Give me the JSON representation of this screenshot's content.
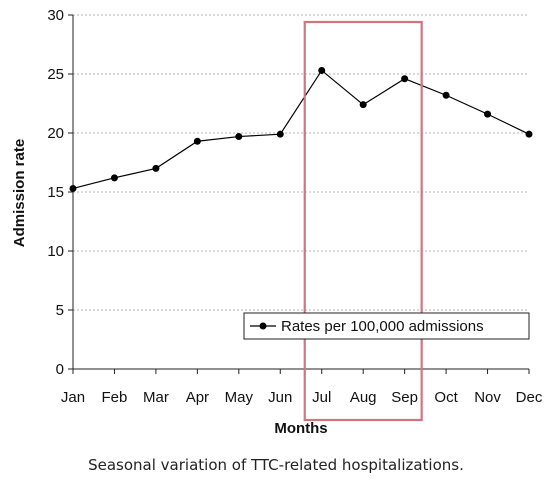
{
  "chart_data": {
    "type": "line",
    "categories": [
      "Jan",
      "Feb",
      "Mar",
      "Apr",
      "May",
      "Jun",
      "Jul",
      "Aug",
      "Sep",
      "Oct",
      "Nov",
      "Dec"
    ],
    "series": [
      {
        "name": "Rates per 100,000 admissions",
        "values": [
          15.3,
          16.2,
          17.0,
          19.3,
          19.7,
          19.9,
          25.3,
          22.4,
          24.6,
          23.2,
          21.6,
          19.9
        ],
        "color": "#000000"
      }
    ],
    "xlabel": "Months",
    "ylabel": "Admission rate",
    "ylim": [
      0,
      30
    ],
    "yticks": [
      0,
      5,
      10,
      15,
      20,
      25,
      30
    ],
    "grid": true,
    "legend_position": "bottom-right",
    "highlight": {
      "categories": [
        "Jul",
        "Aug",
        "Sep"
      ],
      "color": "#d0747f"
    }
  },
  "caption": "Seasonal variation of TTC-related hospitalizations."
}
